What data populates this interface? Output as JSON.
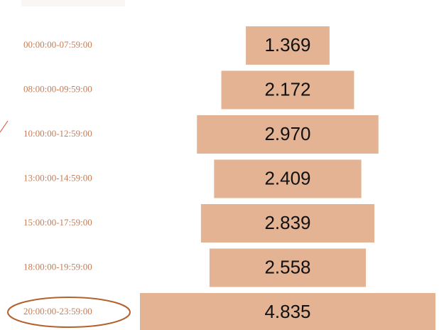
{
  "chart_data": {
    "type": "funnel",
    "categories": [
      "00:00:00-07:59:00",
      "08:00:00-09:59:00",
      "10:00:00-12:59:00",
      "13:00:00-14:59:00",
      "15:00:00-17:59:00",
      "18:00:00-19:59:00",
      "20:00:00-23:59:00"
    ],
    "values": [
      1.369,
      2.172,
      2.97,
      2.409,
      2.839,
      2.558,
      4.835
    ],
    "value_labels": [
      "1.369",
      "2.172",
      "2.970",
      "2.409",
      "2.839",
      "2.558",
      "4.835"
    ],
    "color": "#e3b393",
    "label_color": "#c47d58",
    "highlight_color": "#b4622c"
  }
}
